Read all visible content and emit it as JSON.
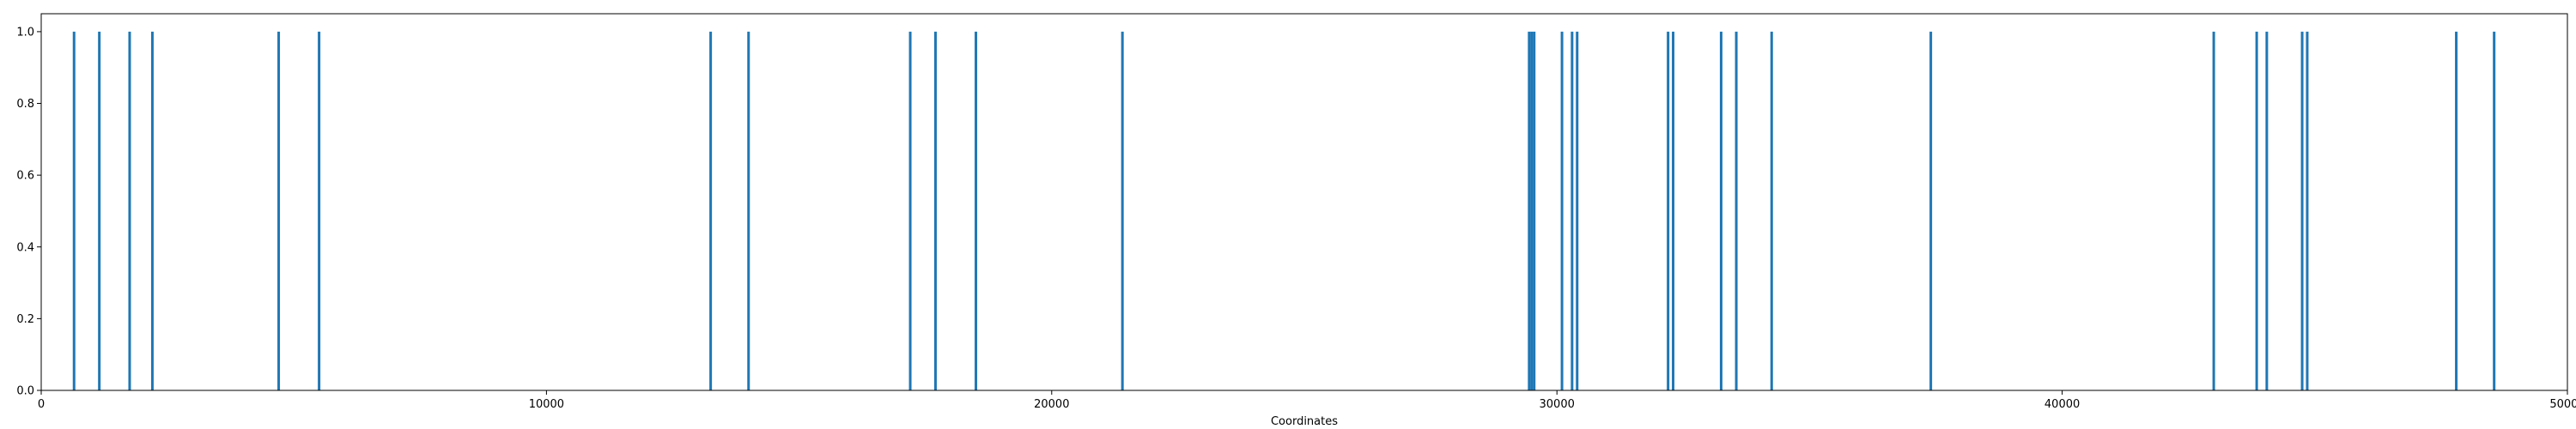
{
  "chart_data": {
    "type": "bar",
    "title": "",
    "xlabel": "Coordinates",
    "ylabel": "",
    "xlim": [
      0,
      50000
    ],
    "ylim": [
      0,
      1.05
    ],
    "grid": false,
    "bar_color": "#1f77b4",
    "x_ticks": [
      {
        "value": 0,
        "label": "0"
      },
      {
        "value": 10000,
        "label": "10000"
      },
      {
        "value": 20000,
        "label": "20000"
      },
      {
        "value": 30000,
        "label": "30000"
      },
      {
        "value": 40000,
        "label": "40000"
      },
      {
        "value": 50000,
        "label": "50000"
      }
    ],
    "y_ticks": [
      {
        "value": 0.0,
        "label": "0.0"
      },
      {
        "value": 0.2,
        "label": "0.2"
      },
      {
        "value": 0.4,
        "label": "0.4"
      },
      {
        "value": 0.6,
        "label": "0.6"
      },
      {
        "value": 0.8,
        "label": "0.8"
      },
      {
        "value": 1.0,
        "label": "1.0"
      }
    ],
    "x": [
      650,
      1150,
      1750,
      2200,
      4700,
      5500,
      13250,
      14000,
      17200,
      17700,
      18500,
      21400,
      29450,
      29500,
      29550,
      30100,
      30300,
      30400,
      32200,
      32300,
      33250,
      33550,
      34250,
      37400,
      43000,
      43850,
      44050,
      44750,
      44850,
      47800,
      48550
    ],
    "values": [
      1,
      1,
      1,
      1,
      1,
      1,
      1,
      1,
      1,
      1,
      1,
      1,
      1,
      1,
      1,
      1,
      1,
      1,
      1,
      1,
      1,
      1,
      1,
      1,
      1,
      1,
      1,
      1,
      1,
      1,
      1
    ]
  }
}
